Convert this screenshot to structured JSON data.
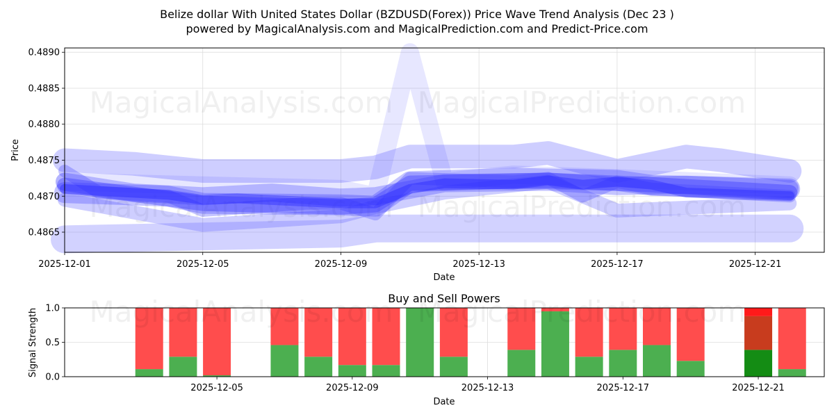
{
  "chart_data": [
    {
      "type": "line",
      "title": "Belize dollar With United States Dollar (BZDUSD(Forex)) Price Wave Trend Analysis (Dec 23 )",
      "subtitle": "powered by MagicalAnalysis.com and MagicalPrediction.com and Predict-Price.com",
      "xlabel": "Date",
      "ylabel": "Price",
      "xlim": [
        "2025-12-01",
        "2025-12-23"
      ],
      "ylim": [
        0.48622,
        0.48906
      ],
      "x_ticks": [
        "2025-12-01",
        "2025-12-05",
        "2025-12-09",
        "2025-12-13",
        "2025-12-17",
        "2025-12-21"
      ],
      "y_ticks": [
        "0.4865",
        "0.4870",
        "0.4875",
        "0.4880",
        "0.4885",
        "0.4890"
      ],
      "grid": true,
      "watermarks": [
        "MagicalAnalysis.com",
        "MagicalPrediction.com"
      ],
      "series": [
        {
          "name": "wave-1",
          "x": [
            "2025-12-01",
            "2025-12-04",
            "2025-12-05",
            "2025-12-09",
            "2025-12-10",
            "2025-12-11",
            "2025-12-14",
            "2025-12-17",
            "2025-12-18",
            "2025-12-22"
          ],
          "values": [
            0.48705,
            0.487,
            0.4869,
            0.48688,
            0.48686,
            0.4872,
            0.48725,
            0.48722,
            0.48715,
            0.4871
          ]
        },
        {
          "name": "wave-2",
          "x": [
            "2025-12-01",
            "2025-12-03",
            "2025-12-05",
            "2025-12-07",
            "2025-12-09",
            "2025-12-10",
            "2025-12-12",
            "2025-12-15",
            "2025-12-17",
            "2025-12-19",
            "2025-12-22"
          ],
          "values": [
            0.4872,
            0.48705,
            0.487,
            0.48705,
            0.48698,
            0.487,
            0.48718,
            0.4872,
            0.48714,
            0.48716,
            0.4871
          ]
        },
        {
          "name": "wave-3",
          "x": [
            "2025-12-01",
            "2025-12-05",
            "2025-12-09",
            "2025-12-10",
            "2025-12-11",
            "2025-12-15",
            "2025-12-18",
            "2025-12-22"
          ],
          "values": [
            0.48715,
            0.4869,
            0.48685,
            0.48688,
            0.48718,
            0.48722,
            0.48716,
            0.48705
          ]
        },
        {
          "name": "wave-4",
          "x": [
            "2025-12-01",
            "2025-12-02",
            "2025-12-04",
            "2025-12-05",
            "2025-12-08",
            "2025-12-09",
            "2025-12-10",
            "2025-12-11",
            "2025-12-14",
            "2025-12-15",
            "2025-12-16",
            "2025-12-17",
            "2025-12-18",
            "2025-12-20",
            "2025-12-22"
          ],
          "values": [
            0.48735,
            0.48705,
            0.487,
            0.4868,
            0.4869,
            0.4869,
            0.48675,
            0.48725,
            0.4872,
            0.48725,
            0.487,
            0.4872,
            0.4871,
            0.48705,
            0.487
          ]
        },
        {
          "name": "wave-5",
          "x": [
            "2025-12-01",
            "2025-12-03",
            "2025-12-05",
            "2025-12-09",
            "2025-12-10",
            "2025-12-11",
            "2025-12-14",
            "2025-12-15",
            "2025-12-17",
            "2025-12-18",
            "2025-12-19",
            "2025-12-20",
            "2025-12-22"
          ],
          "values": [
            0.4875,
            0.48745,
            0.48735,
            0.48735,
            0.4874,
            0.48755,
            0.48755,
            0.4876,
            0.48735,
            0.48745,
            0.48755,
            0.4875,
            0.48735
          ]
        },
        {
          "name": "wave-6",
          "x": [
            "2025-12-01",
            "2025-12-05",
            "2025-12-09",
            "2025-12-10",
            "2025-12-12",
            "2025-12-15",
            "2025-12-17",
            "2025-12-22"
          ],
          "values": [
            0.48695,
            0.4866,
            0.48672,
            0.48685,
            0.48705,
            0.4872,
            0.4868,
            0.4869
          ]
        },
        {
          "name": "wave-7",
          "x": [
            "2025-12-01",
            "2025-12-09",
            "2025-12-10",
            "2025-12-11",
            "2025-12-12",
            "2025-12-14",
            "2025-12-17",
            "2025-12-22"
          ],
          "values": [
            0.4872,
            0.4871,
            0.487,
            0.489,
            0.4872,
            0.4873,
            0.48725,
            0.48715
          ]
        },
        {
          "name": "wave-8",
          "x": [
            "2025-12-01",
            "2025-12-09",
            "2025-12-10",
            "2025-12-12",
            "2025-12-14",
            "2025-12-15",
            "2025-12-17",
            "2025-12-22"
          ],
          "values": [
            0.4864,
            0.48648,
            0.48655,
            0.48655,
            0.48655,
            0.48655,
            0.48655,
            0.48655
          ]
        },
        {
          "name": "wave-9",
          "x": [
            "2025-12-01",
            "2025-12-04",
            "2025-12-05",
            "2025-12-06",
            "2025-12-09",
            "2025-12-10",
            "2025-12-11",
            "2025-12-12",
            "2025-12-13",
            "2025-12-14",
            "2025-12-15",
            "2025-12-16",
            "2025-12-17",
            "2025-12-18",
            "2025-12-19",
            "2025-12-22"
          ],
          "values": [
            0.4871,
            0.48702,
            0.48695,
            0.48697,
            0.4869,
            0.4869,
            0.4871,
            0.48718,
            0.48717,
            0.48716,
            0.48722,
            0.48716,
            0.4872,
            0.48716,
            0.48705,
            0.487
          ]
        }
      ]
    },
    {
      "type": "bar",
      "title": "Buy and Sell Powers",
      "xlabel": "Date",
      "ylabel": "Signal Strength",
      "ylim": [
        0,
        1.0
      ],
      "y_ticks": [
        "0.0",
        "0.5",
        "1.0"
      ],
      "x_ticks": [
        "2025-12-05",
        "2025-12-09",
        "2025-12-13",
        "2025-12-17",
        "2025-12-21"
      ],
      "colors": {
        "buy": "#4caf50",
        "sell": "#ff4d4d",
        "buy_dark": "#148c14",
        "sell_dark": "#c83c1e",
        "sell_bright": "#ff1a1a"
      },
      "bars": [
        {
          "date": "2025-12-03",
          "buy": 0.11,
          "sell": 0.89
        },
        {
          "date": "2025-12-04",
          "buy": 0.29,
          "sell": 0.71
        },
        {
          "date": "2025-12-05",
          "buy": 0.02,
          "sell": 0.98
        },
        {
          "date": "2025-12-07",
          "buy": 0.46,
          "sell": 0.54
        },
        {
          "date": "2025-12-08",
          "buy": 0.29,
          "sell": 0.71
        },
        {
          "date": "2025-12-09",
          "buy": 0.17,
          "sell": 0.83
        },
        {
          "date": "2025-12-10",
          "buy": 0.17,
          "sell": 0.83
        },
        {
          "date": "2025-12-11",
          "buy": 1.0,
          "sell": 0.0
        },
        {
          "date": "2025-12-12",
          "buy": 0.29,
          "sell": 0.71
        },
        {
          "date": "2025-12-14",
          "buy": 0.39,
          "sell": 0.61
        },
        {
          "date": "2025-12-15",
          "buy": 0.95,
          "sell": 0.05
        },
        {
          "date": "2025-12-16",
          "buy": 0.29,
          "sell": 0.71
        },
        {
          "date": "2025-12-17",
          "buy": 0.39,
          "sell": 0.61
        },
        {
          "date": "2025-12-18",
          "buy": 0.46,
          "sell": 0.54
        },
        {
          "date": "2025-12-19",
          "buy": 0.23,
          "sell": 0.77
        },
        {
          "date": "2025-12-21",
          "buy": 0.39,
          "sell": 0.49,
          "extra_sell": 0.12,
          "style": "dark"
        },
        {
          "date": "2025-12-22",
          "buy": 0.11,
          "sell": 0.89
        }
      ]
    }
  ]
}
